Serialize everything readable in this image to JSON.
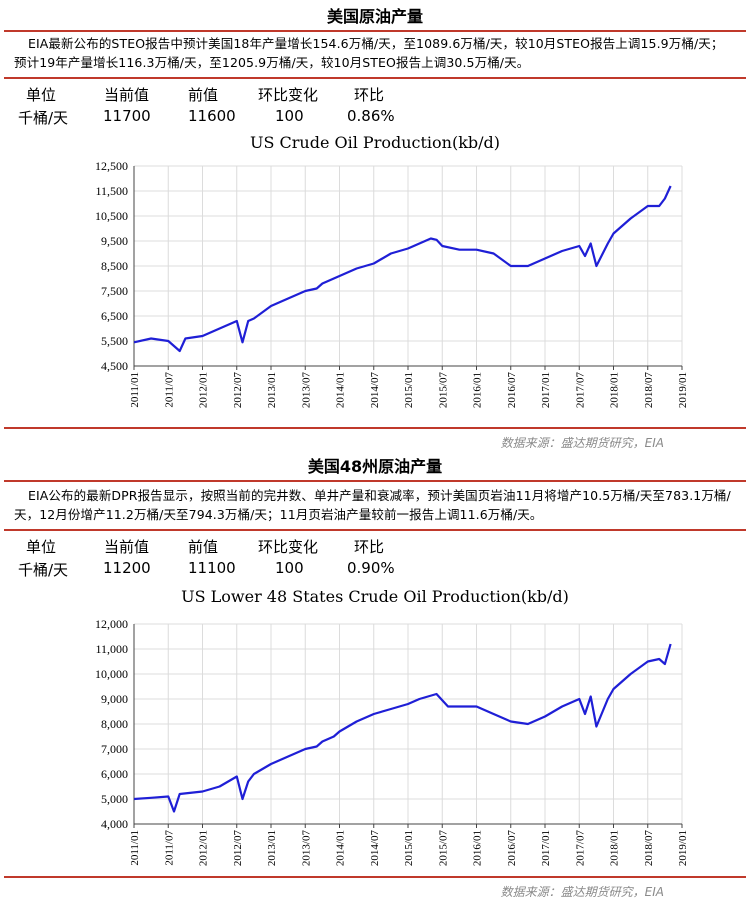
{
  "colors": {
    "accent": "#c0392b",
    "line": "#1f1fd6"
  },
  "sections": [
    {
      "title": "美国原油产量",
      "description": "EIA最新公布的STEO报告中预计美国18年产量增长154.6万桶/天，至1089.6万桶/天，较10月STEO报告上调15.9万桶/天；预计19年产量增长116.3万桶/天，至1205.9万桶/天，较10月STEO报告上调30.5万桶/天。",
      "table": {
        "headers": [
          "单位",
          "当前值",
          "前值",
          "环比变化",
          "环比"
        ],
        "values": [
          "千桶/天",
          "11700",
          "11600",
          "100",
          "0.86%"
        ]
      },
      "source": "数据来源：盛达期货研究，EIA",
      "chart_data": {
        "type": "line",
        "title": "US Crude Oil Production(kb/d)",
        "xlabel": "",
        "ylabel": "",
        "ylim": [
          4500,
          12500
        ],
        "yticks": [
          "4,500",
          "5,500",
          "6,500",
          "7,500",
          "8,500",
          "9,500",
          "10,500",
          "11,500",
          "12,500"
        ],
        "xticks": [
          "2011/01",
          "2011/07",
          "2012/01",
          "2012/07",
          "2013/01",
          "2013/07",
          "2014/01",
          "2014/07",
          "2015/01",
          "2015/07",
          "2016/01",
          "2016/07",
          "2017/01",
          "2017/07",
          "2018/01",
          "2018/07",
          "2019/01"
        ],
        "x": [
          "2011/01",
          "2011/04",
          "2011/07",
          "2011/09",
          "2011/10",
          "2012/01",
          "2012/04",
          "2012/07",
          "2012/08",
          "2012/09",
          "2012/10",
          "2013/01",
          "2013/04",
          "2013/07",
          "2013/09",
          "2013/10",
          "2013/12",
          "2014/01",
          "2014/04",
          "2014/07",
          "2014/10",
          "2015/01",
          "2015/03",
          "2015/05",
          "2015/06",
          "2015/07",
          "2015/10",
          "2016/01",
          "2016/04",
          "2016/07",
          "2016/10",
          "2017/01",
          "2017/04",
          "2017/07",
          "2017/08",
          "2017/09",
          "2017/10",
          "2017/12",
          "2018/01",
          "2018/04",
          "2018/07",
          "2018/09",
          "2018/10",
          "2018/11"
        ],
        "series": [
          {
            "name": "",
            "values": [
              5450,
              5600,
              5500,
              5100,
              5600,
              5700,
              6000,
              6300,
              5450,
              6300,
              6400,
              6900,
              7200,
              7500,
              7600,
              7800,
              8000,
              8100,
              8400,
              8600,
              9000,
              9200,
              9400,
              9600,
              9550,
              9300,
              9150,
              9150,
              9000,
              8500,
              8500,
              8800,
              9100,
              9300,
              8900,
              9400,
              8500,
              9400,
              9800,
              10400,
              10900,
              10900,
              11200,
              11700
            ]
          }
        ]
      }
    },
    {
      "title": "美国48州原油产量",
      "description": "EIA公布的最新DPR报告显示，按照当前的完井数、单井产量和衰减率，预计美国页岩油11月将增产10.5万桶/天至783.1万桶/天，12月份增产11.2万桶/天至794.3万桶/天；11月页岩油产量较前一报告上调11.6万桶/天。",
      "table": {
        "headers": [
          "单位",
          "当前值",
          "前值",
          "环比变化",
          "环比"
        ],
        "values": [
          "千桶/天",
          "11200",
          "11100",
          "100",
          "0.90%"
        ]
      },
      "source": "数据来源：盛达期货研究，EIA",
      "chart_data": {
        "type": "line",
        "title": "US Lower 48 States Crude Oil Production(kb/d)",
        "xlabel": "",
        "ylabel": "",
        "ylim": [
          4000,
          12000
        ],
        "yticks": [
          "4,000",
          "5,000",
          "6,000",
          "7,000",
          "8,000",
          "9,000",
          "10,000",
          "11,000",
          "12,000"
        ],
        "xticks": [
          "2011/01",
          "2011/07",
          "2012/01",
          "2012/07",
          "2013/01",
          "2013/07",
          "2014/01",
          "2014/07",
          "2015/01",
          "2015/07",
          "2016/01",
          "2016/07",
          "2017/01",
          "2017/07",
          "2018/01",
          "2018/07",
          "2019/01"
        ],
        "x": [
          "2011/01",
          "2011/04",
          "2011/07",
          "2011/08",
          "2011/09",
          "2012/01",
          "2012/04",
          "2012/07",
          "2012/08",
          "2012/09",
          "2012/10",
          "2013/01",
          "2013/04",
          "2013/07",
          "2013/09",
          "2013/10",
          "2013/12",
          "2014/01",
          "2014/04",
          "2014/07",
          "2014/10",
          "2015/01",
          "2015/03",
          "2015/06",
          "2015/08",
          "2015/10",
          "2016/01",
          "2016/04",
          "2016/07",
          "2016/10",
          "2017/01",
          "2017/04",
          "2017/07",
          "2017/08",
          "2017/09",
          "2017/10",
          "2017/12",
          "2018/01",
          "2018/04",
          "2018/07",
          "2018/09",
          "2018/10",
          "2018/11"
        ],
        "series": [
          {
            "name": "",
            "values": [
              5000,
              5050,
              5100,
              4500,
              5200,
              5300,
              5500,
              5900,
              5000,
              5700,
              6000,
              6400,
              6700,
              7000,
              7100,
              7300,
              7500,
              7700,
              8100,
              8400,
              8600,
              8800,
              9000,
              9200,
              8700,
              8700,
              8700,
              8400,
              8100,
              8000,
              8300,
              8700,
              9000,
              8400,
              9100,
              7900,
              9000,
              9400,
              10000,
              10500,
              10600,
              10400,
              11200
            ]
          }
        ]
      }
    }
  ]
}
